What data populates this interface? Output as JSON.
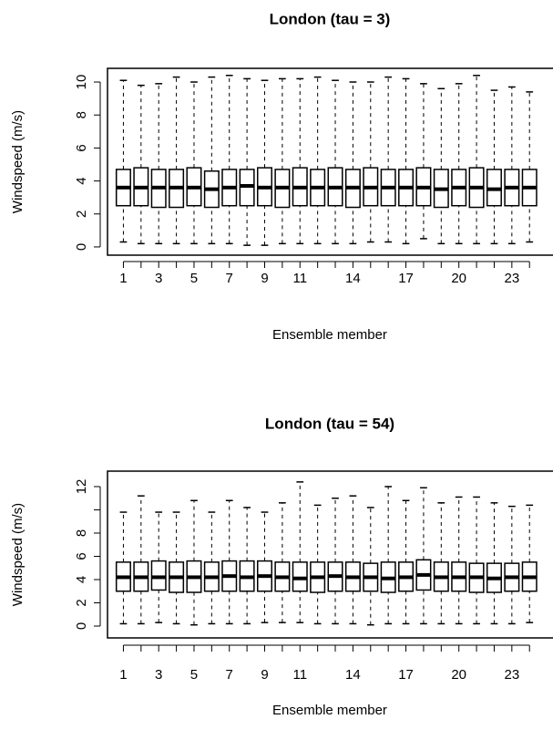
{
  "chart_data": [
    {
      "type": "box",
      "title": "London (tau = 3)",
      "x_label": "Ensemble member",
      "y_label": "Windspeed (m/s)",
      "categories": [
        "1",
        null,
        "3",
        null,
        "5",
        null,
        "7",
        null,
        "9",
        null,
        "11",
        null,
        null,
        "14",
        null,
        null,
        "17",
        null,
        null,
        "20",
        null,
        null,
        "23",
        null
      ],
      "whisker_low": [
        0.3,
        0.2,
        0.2,
        0.2,
        0.2,
        0.2,
        0.2,
        0.1,
        0.1,
        0.2,
        0.2,
        0.2,
        0.2,
        0.2,
        0.3,
        0.3,
        0.2,
        0.5,
        0.2,
        0.2,
        0.2,
        0.2,
        0.2,
        0.3
      ],
      "q1": [
        2.5,
        2.5,
        2.4,
        2.4,
        2.5,
        2.4,
        2.5,
        2.5,
        2.5,
        2.4,
        2.5,
        2.5,
        2.5,
        2.4,
        2.5,
        2.5,
        2.5,
        2.5,
        2.4,
        2.5,
        2.4,
        2.5,
        2.5,
        2.5
      ],
      "median": [
        3.6,
        3.6,
        3.6,
        3.6,
        3.6,
        3.5,
        3.6,
        3.7,
        3.6,
        3.6,
        3.6,
        3.6,
        3.6,
        3.6,
        3.6,
        3.6,
        3.6,
        3.6,
        3.5,
        3.6,
        3.6,
        3.5,
        3.6,
        3.6
      ],
      "q3": [
        4.7,
        4.8,
        4.7,
        4.7,
        4.8,
        4.6,
        4.7,
        4.7,
        4.8,
        4.7,
        4.8,
        4.7,
        4.8,
        4.7,
        4.8,
        4.7,
        4.7,
        4.8,
        4.7,
        4.7,
        4.8,
        4.7,
        4.7,
        4.7
      ],
      "whisker_high": [
        10.1,
        9.8,
        9.9,
        10.3,
        10.0,
        10.3,
        10.4,
        10.2,
        10.1,
        10.2,
        10.2,
        10.3,
        10.1,
        10.0,
        10.0,
        10.3,
        10.2,
        9.9,
        9.6,
        9.9,
        10.4,
        9.5,
        9.7,
        9.4
      ],
      "color": "#ffffff",
      "xlim": [
        0.1,
        25.33
      ],
      "ylim": [
        -0.5,
        10.83
      ],
      "yticks": [
        0,
        2,
        4,
        6,
        8,
        10
      ]
    },
    {
      "type": "box",
      "title": "London (tau = 54)",
      "x_label": "Ensemble member",
      "y_label": "Windspeed (m/s)",
      "categories": [
        "1",
        null,
        "3",
        null,
        "5",
        null,
        "7",
        null,
        "9",
        null,
        "11",
        null,
        null,
        "14",
        null,
        null,
        "17",
        null,
        null,
        "20",
        null,
        null,
        "23",
        null
      ],
      "whisker_low": [
        0.2,
        0.2,
        0.3,
        0.2,
        0.1,
        0.2,
        0.2,
        0.2,
        0.3,
        0.3,
        0.3,
        0.2,
        0.2,
        0.2,
        0.1,
        0.2,
        0.2,
        0.2,
        0.2,
        0.2,
        0.2,
        0.2,
        0.2,
        0.3
      ],
      "q1": [
        3.0,
        3.0,
        3.1,
        2.9,
        2.9,
        3.0,
        3.0,
        3.0,
        3.0,
        3.0,
        3.0,
        2.9,
        3.0,
        3.0,
        3.0,
        2.9,
        3.0,
        3.1,
        3.0,
        3.0,
        2.9,
        2.9,
        3.0,
        3.0
      ],
      "median": [
        4.2,
        4.2,
        4.2,
        4.2,
        4.2,
        4.2,
        4.3,
        4.2,
        4.3,
        4.2,
        4.1,
        4.2,
        4.3,
        4.2,
        4.2,
        4.1,
        4.2,
        4.4,
        4.2,
        4.2,
        4.2,
        4.1,
        4.2,
        4.2
      ],
      "q3": [
        5.5,
        5.5,
        5.6,
        5.5,
        5.6,
        5.5,
        5.6,
        5.6,
        5.6,
        5.5,
        5.5,
        5.5,
        5.5,
        5.5,
        5.4,
        5.5,
        5.5,
        5.7,
        5.5,
        5.5,
        5.4,
        5.4,
        5.4,
        5.5
      ],
      "whisker_high": [
        9.8,
        11.2,
        9.8,
        9.8,
        10.8,
        9.8,
        10.8,
        10.2,
        9.8,
        10.6,
        12.4,
        10.4,
        11.0,
        11.2,
        10.2,
        12.0,
        10.8,
        11.9,
        10.6,
        11.1,
        11.1,
        10.6,
        10.3,
        10.4
      ],
      "color": "#ffffff",
      "xlim": [
        0.1,
        25.33
      ],
      "ylim": [
        -1.02,
        13.33
      ],
      "yticks": [
        0,
        2,
        4,
        6,
        8,
        {
          "value": 10,
          "label": null
        },
        12
      ]
    }
  ]
}
